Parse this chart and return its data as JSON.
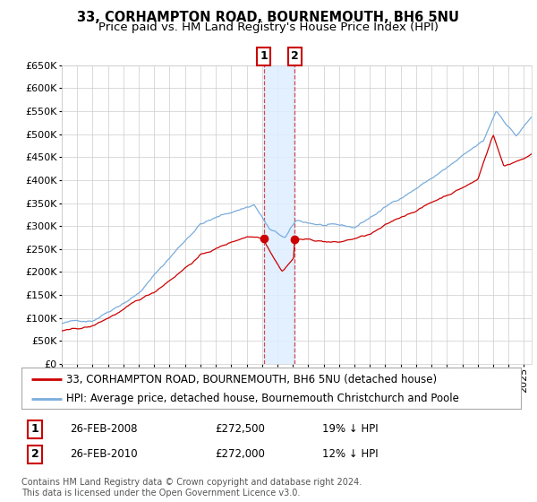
{
  "title": "33, CORHAMPTON ROAD, BOURNEMOUTH, BH6 5NU",
  "subtitle": "Price paid vs. HM Land Registry's House Price Index (HPI)",
  "legend_line1": "33, CORHAMPTON ROAD, BOURNEMOUTH, BH6 5NU (detached house)",
  "legend_line2": "HPI: Average price, detached house, Bournemouth Christchurch and Poole",
  "transaction1_date": "26-FEB-2008",
  "transaction1_price": 272500,
  "transaction1_price_str": "£272,500",
  "transaction1_note": "19% ↓ HPI",
  "transaction2_date": "26-FEB-2010",
  "transaction2_price": 272000,
  "transaction2_price_str": "£272,000",
  "transaction2_note": "12% ↓ HPI",
  "footer": "Contains HM Land Registry data © Crown copyright and database right 2024.\nThis data is licensed under the Open Government Licence v3.0.",
  "hpi_color": "#7aaddc",
  "price_color": "#cc0000",
  "marker_color": "#cc0000",
  "vline_color": "#cc0000",
  "shade_color": "#ddeeff",
  "grid_color": "#cccccc",
  "background_color": "#ffffff",
  "ylim_max": 650000,
  "ylabel_step": 50000,
  "title_fontsize": 10.5,
  "subtitle_fontsize": 9.5,
  "tick_fontsize": 8,
  "legend_fontsize": 8.5,
  "footer_fontsize": 7,
  "transaction_year1": 2008.12,
  "transaction_year2": 2010.12,
  "xmin": 1995,
  "xmax": 2025.5
}
